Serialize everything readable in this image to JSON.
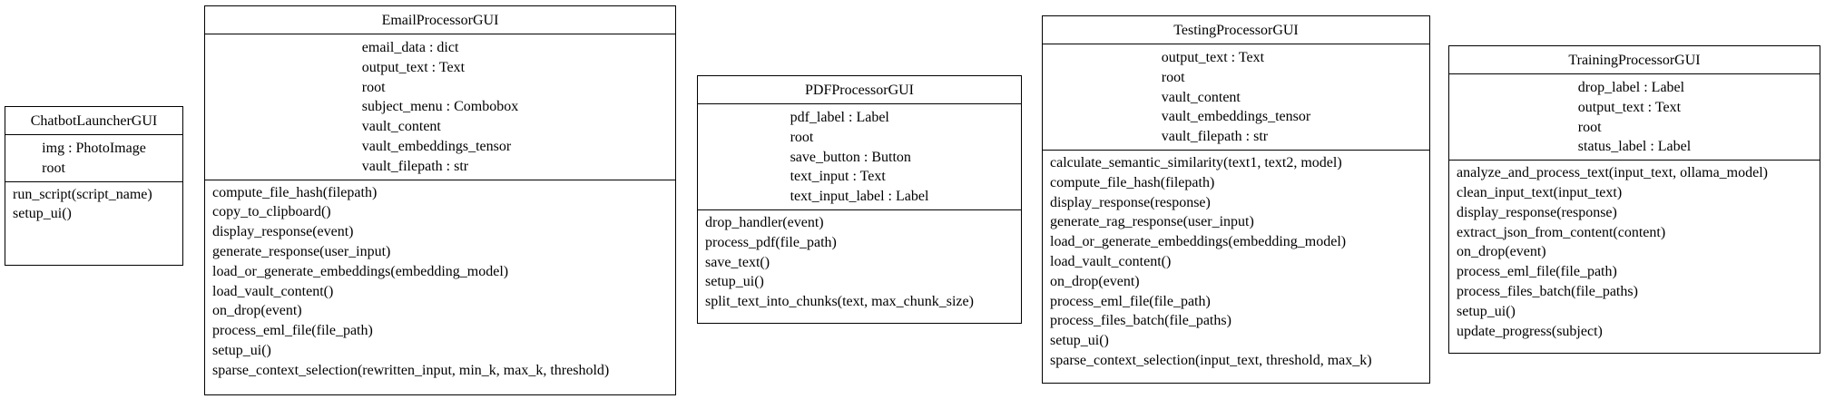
{
  "classes": [
    {
      "name": "ChatbotLauncherGUI",
      "attributes": [
        "img : PhotoImage",
        "root"
      ],
      "methods": [
        "run_script(script_name)",
        "setup_ui()"
      ]
    },
    {
      "name": "EmailProcessorGUI",
      "attributes": [
        "email_data : dict",
        "output_text : Text",
        "root",
        "subject_menu : Combobox",
        "vault_content",
        "vault_embeddings_tensor",
        "vault_filepath : str"
      ],
      "methods": [
        "compute_file_hash(filepath)",
        "copy_to_clipboard()",
        "display_response(event)",
        "generate_response(user_input)",
        "load_or_generate_embeddings(embedding_model)",
        "load_vault_content()",
        "on_drop(event)",
        "process_eml_file(file_path)",
        "setup_ui()",
        "sparse_context_selection(rewritten_input, min_k, max_k, threshold)"
      ]
    },
    {
      "name": "PDFProcessorGUI",
      "attributes": [
        "pdf_label : Label",
        "root",
        "save_button : Button",
        "text_input : Text",
        "text_input_label : Label"
      ],
      "methods": [
        "drop_handler(event)",
        "process_pdf(file_path)",
        "save_text()",
        "setup_ui()",
        "split_text_into_chunks(text, max_chunk_size)"
      ]
    },
    {
      "name": "TestingProcessorGUI",
      "attributes": [
        "output_text : Text",
        "root",
        "vault_content",
        "vault_embeddings_tensor",
        "vault_filepath : str"
      ],
      "methods": [
        "calculate_semantic_similarity(text1, text2, model)",
        "compute_file_hash(filepath)",
        "display_response(response)",
        "generate_rag_response(user_input)",
        "load_or_generate_embeddings(embedding_model)",
        "load_vault_content()",
        "on_drop(event)",
        "process_eml_file(file_path)",
        "process_files_batch(file_paths)",
        "setup_ui()",
        "sparse_context_selection(input_text, threshold, max_k)"
      ]
    },
    {
      "name": "TrainingProcessorGUI",
      "attributes": [
        "drop_label : Label",
        "output_text : Text",
        "root",
        "status_label : Label"
      ],
      "methods": [
        "analyze_and_process_text(input_text, ollama_model)",
        "clean_input_text(input_text)",
        "display_response(response)",
        "extract_json_from_content(content)",
        "on_drop(event)",
        "process_eml_file(file_path)",
        "process_files_batch(file_paths)",
        "setup_ui()",
        "update_progress(subject)"
      ]
    }
  ]
}
